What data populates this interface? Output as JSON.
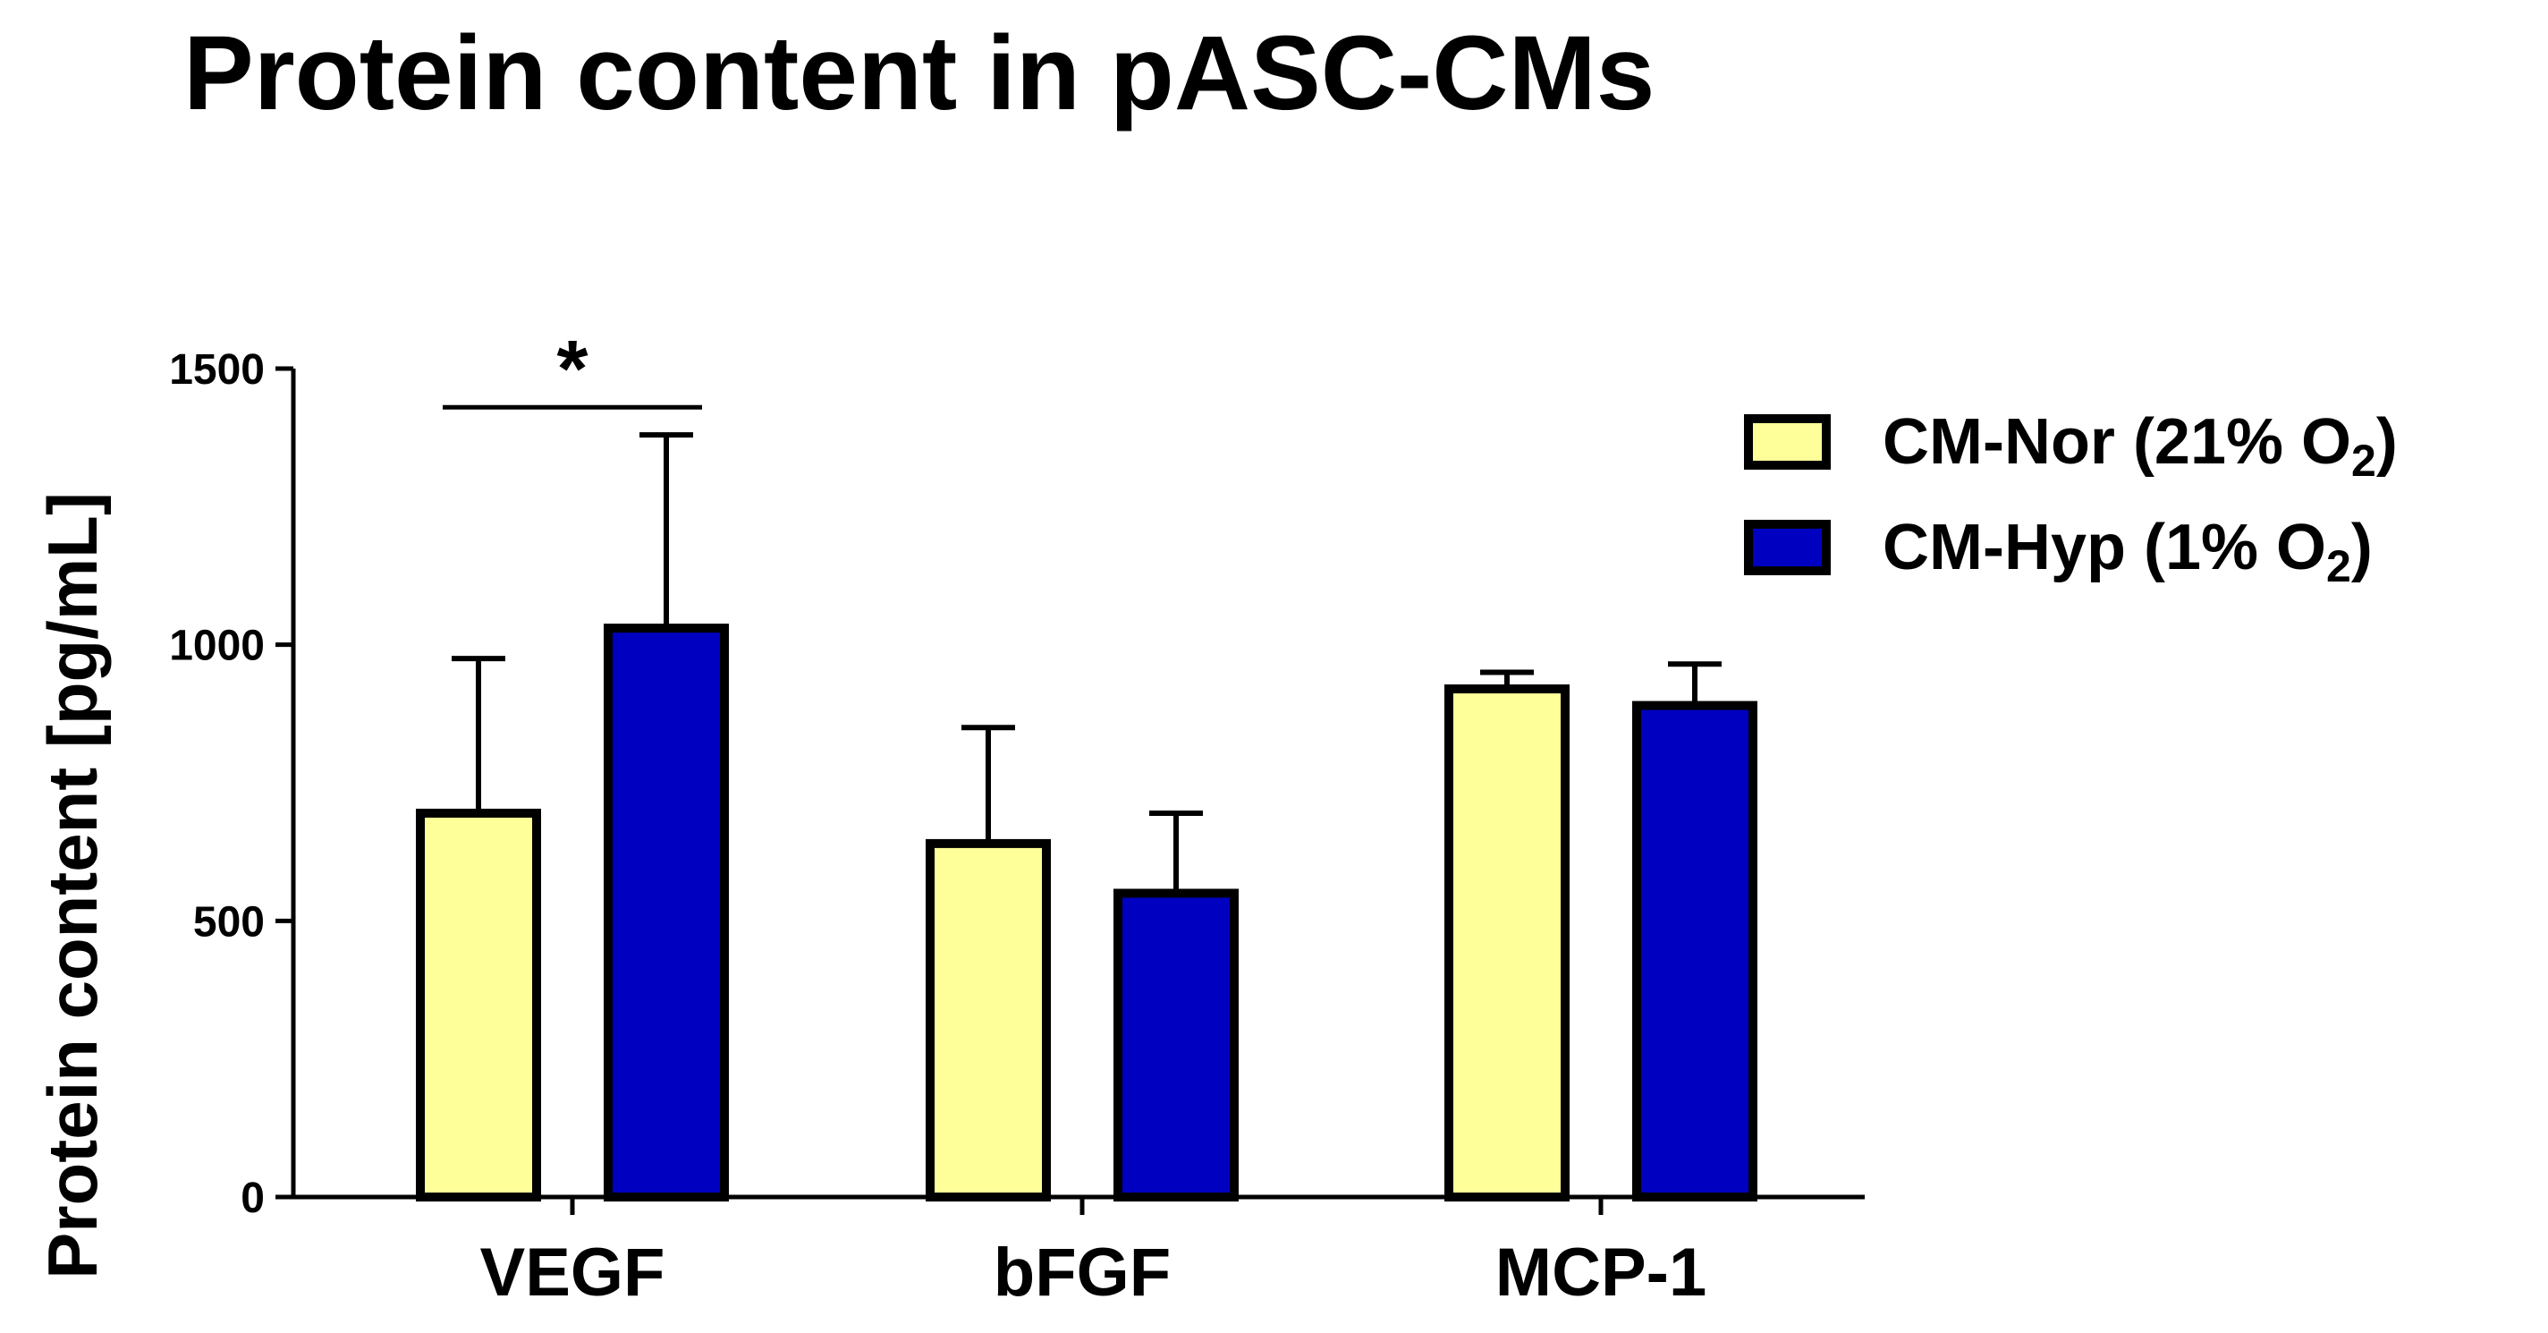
{
  "chart_data": {
    "type": "bar",
    "title": "Protein content in pASC-CMs",
    "ylabel": "Protein content [pg/mL]",
    "xlabel": "",
    "ylim": [
      0,
      1500
    ],
    "yticks": [
      0,
      500,
      1000,
      1500
    ],
    "grid": false,
    "legend_position": "top-right",
    "categories": [
      "VEGF",
      "bFGF",
      "MCP-1"
    ],
    "series": [
      {
        "name": "CM-Nor (21% O2)",
        "legend_main": "CM-Nor (21% O",
        "legend_sub": "2",
        "legend_tail": ")",
        "color": "#ffff99",
        "values": [
          695,
          640,
          920
        ],
        "error": [
          280,
          210,
          30
        ]
      },
      {
        "name": "CM-Hyp (1% O2)",
        "legend_main": "CM-Hyp (1% O",
        "legend_sub": "2",
        "legend_tail": ")",
        "color": "#0000c0",
        "values": [
          1030,
          550,
          890
        ],
        "error": [
          350,
          145,
          75
        ]
      }
    ],
    "annotations": [
      {
        "text": "*",
        "category": "VEGF",
        "y": 1430
      }
    ]
  }
}
